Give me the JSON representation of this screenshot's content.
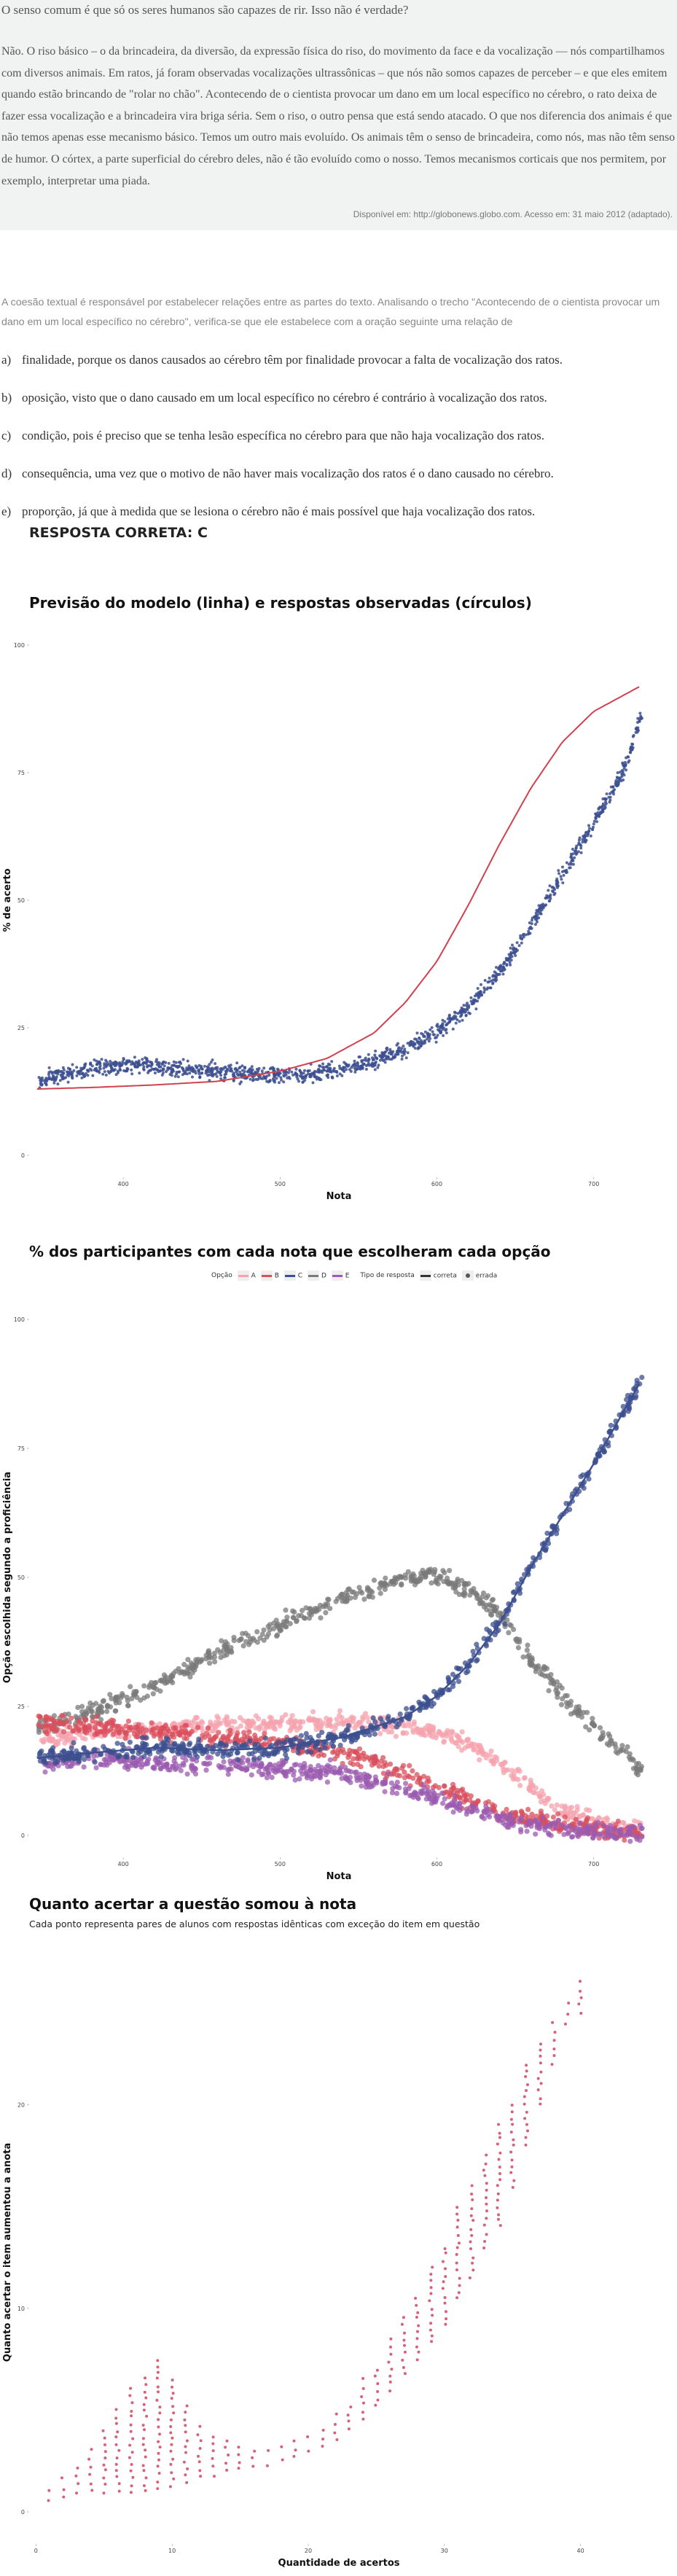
{
  "question": {
    "title": "O senso comum é que só os seres humanos são capazes de rir. Isso não é verdade?",
    "passage": "Não. O riso básico – o da brincadeira, da diversão, da expressão física do riso, do movimento da face e da vocalização — nós compartilhamos com diversos animais. Em ratos, já foram observadas vocalizações ultrassônicas – que nós não somos capazes de perceber – e que eles emitem quando estão brincando de \"rolar no chão\". Acontecendo de o cientista provocar um dano em um local específico no cérebro, o rato deixa de fazer essa vocalização e a brincadeira vira briga séria. Sem o riso, o outro pensa que está sendo atacado. O que nos diferencia dos animais é que não temos apenas esse mecanismo básico. Temos um outro mais evoluído. Os animais têm o senso de brincadeira, como nós, mas não têm senso de humor. O córtex, a parte superficial do cérebro deles, não é tão evoluído como o nosso. Temos mecanismos corticais que nos permitem, por exemplo, interpretar uma piada.",
    "source": "Disponível em: http://globonews.globo.com. Acesso em: 31 maio 2012 (adaptado).",
    "stem": "A coesão textual é responsável por estabelecer relações entre as partes do texto. Analisando o trecho \"Acontecendo de o cientista provocar um dano em um local específico no cérebro\", verifica-se que ele estabelece com a oração seguinte uma relação de",
    "options": [
      {
        "letter": "a)",
        "text": "finalidade, porque os danos causados ao cérebro têm por finalidade provocar a falta de vocalização dos ratos."
      },
      {
        "letter": "b)",
        "text": "oposição, visto que o dano causado em um local específico no cérebro é contrário à vocalização dos ratos."
      },
      {
        "letter": "c)",
        "text": "condição, pois é preciso que se tenha lesão específica no cérebro para que não haja vocalização dos ratos."
      },
      {
        "letter": "d)",
        "text": "consequência, uma vez que o motivo de não haver mais vocalização dos ratos é o dano causado no cérebro."
      },
      {
        "letter": "e)",
        "text": "proporção, já que à medida que se lesiona o cérebro não é mais possível que haja vocalização dos ratos."
      }
    ],
    "answer": "RESPOSTA CORRETA: C"
  },
  "colors": {
    "model_line": "#d0414f",
    "observed": "#3c4f8f",
    "A": "#f5a3ad",
    "B": "#d94f5c",
    "C": "#3c4f8f",
    "D": "#7a7a7a",
    "E": "#9b5bb0",
    "chart3_points": "#cc3a5a",
    "grid": "#e6e6e6",
    "text_block_bg": "#f1f3f2"
  },
  "chart_data": [
    {
      "type": "scatter",
      "title": "Previsão do modelo (linha) e respostas observadas (círculos)",
      "xlabel": "Nota",
      "ylabel": "% de acerto",
      "x_ticks": [
        400,
        500,
        600,
        700
      ],
      "y_ticks": [
        0,
        25,
        50,
        75,
        100
      ],
      "xlim": [
        340,
        735
      ],
      "ylim": [
        0,
        100
      ],
      "grid": false,
      "model_line": {
        "x": [
          345,
          380,
          420,
          460,
          500,
          530,
          560,
          580,
          600,
          620,
          640,
          660,
          680,
          700,
          730
        ],
        "y": [
          13,
          13.3,
          13.8,
          14.5,
          16.5,
          19,
          24,
          30,
          38,
          49,
          61,
          72,
          81,
          87,
          92
        ]
      },
      "observed": {
        "x": [
          345,
          360,
          380,
          400,
          420,
          440,
          460,
          480,
          500,
          520,
          540,
          560,
          580,
          600,
          620,
          640,
          660,
          680,
          700,
          720,
          730
        ],
        "y": [
          14,
          16,
          17,
          17.5,
          17.5,
          17,
          16.5,
          16,
          16,
          16,
          17,
          18.5,
          21,
          24,
          29,
          36,
          45,
          55,
          65,
          76,
          86
        ]
      }
    },
    {
      "type": "scatter",
      "title": "% dos participantes com cada nota que escolheram cada opção",
      "xlabel": "Nota",
      "ylabel": "Opção escolhida segundo a proficiência",
      "x_ticks": [
        400,
        500,
        600,
        700
      ],
      "y_ticks": [
        0,
        25,
        50,
        75,
        100
      ],
      "xlim": [
        340,
        735
      ],
      "ylim": [
        0,
        100
      ],
      "legend": {
        "option_label": "Opção",
        "options": [
          "A",
          "B",
          "C",
          "D",
          "E"
        ],
        "type_label": "Tipo de resposta",
        "types": [
          "correta",
          "errada"
        ],
        "placement": "top"
      },
      "x": [
        345,
        380,
        420,
        460,
        500,
        540,
        580,
        600,
        620,
        640,
        660,
        680,
        700,
        730
      ],
      "series": [
        {
          "name": "A",
          "values": [
            18,
            20,
            21,
            21.5,
            22,
            22,
            21,
            20,
            18,
            14,
            9,
            5,
            2.5,
            1
          ],
          "correct": false
        },
        {
          "name": "B",
          "values": [
            22,
            21,
            20,
            19,
            18,
            16,
            12,
            10,
            7,
            4.5,
            3,
            2,
            1,
            0.5
          ],
          "correct": false
        },
        {
          "name": "C",
          "values": [
            15,
            16,
            17,
            16.5,
            17,
            19,
            23,
            27,
            33,
            41,
            52,
            62,
            72,
            88
          ],
          "correct": true
        },
        {
          "name": "D",
          "values": [
            21,
            24,
            29,
            35,
            41,
            46,
            50,
            50,
            48,
            43,
            34,
            27,
            21,
            13
          ],
          "correct": false
        },
        {
          "name": "E",
          "values": [
            14,
            15,
            14,
            13.5,
            13,
            12,
            9,
            7,
            5,
            3.5,
            2,
            1.5,
            1,
            0.5
          ],
          "correct": false
        }
      ]
    },
    {
      "type": "scatter",
      "title": "Quanto acertar a questão somou à nota",
      "subtitle": "Cada ponto representa pares de alunos com respostas idênticas com exceção do item em questão",
      "xlabel": "Quantidade de acertos",
      "ylabel": "Quanto acertar o item aumentou a anota",
      "x_ticks": [
        0,
        10,
        20,
        30,
        40
      ],
      "y_ticks": [
        0,
        10,
        20
      ],
      "xlim": [
        -0.5,
        45
      ],
      "ylim": [
        -0.5,
        26
      ],
      "x": [
        1,
        2,
        3,
        4,
        5,
        6,
        7,
        8,
        9,
        10,
        11,
        12,
        13,
        14,
        15,
        16,
        17,
        18,
        19,
        20,
        21,
        22,
        23,
        24,
        25,
        26,
        27,
        28,
        29,
        30,
        31,
        32,
        33,
        34,
        35,
        36,
        37,
        38,
        39,
        40
      ],
      "y_min": [
        0.5,
        0.7,
        0.9,
        1,
        1,
        1,
        1,
        1,
        1.2,
        1.3,
        1.5,
        1.7,
        1.8,
        2,
        2.1,
        2.2,
        2.3,
        2.5,
        2.7,
        3,
        3.2,
        3.5,
        4,
        4.5,
        5.2,
        6,
        6.8,
        7.5,
        8.3,
        9.2,
        10.5,
        11.5,
        13,
        14,
        16,
        18,
        20,
        22,
        24,
        24.5
      ],
      "y_max": [
        1,
        1.6,
        2.2,
        3,
        4,
        5,
        6,
        6.6,
        7.5,
        6.5,
        5.2,
        4.2,
        3.7,
        3.5,
        3.2,
        3,
        3,
        3.2,
        3.5,
        3.7,
        4,
        4.8,
        5.2,
        6.5,
        7,
        8.5,
        9.5,
        10.5,
        12,
        13,
        15,
        16,
        17.5,
        19,
        20,
        22,
        23,
        24,
        25,
        26
      ]
    }
  ]
}
